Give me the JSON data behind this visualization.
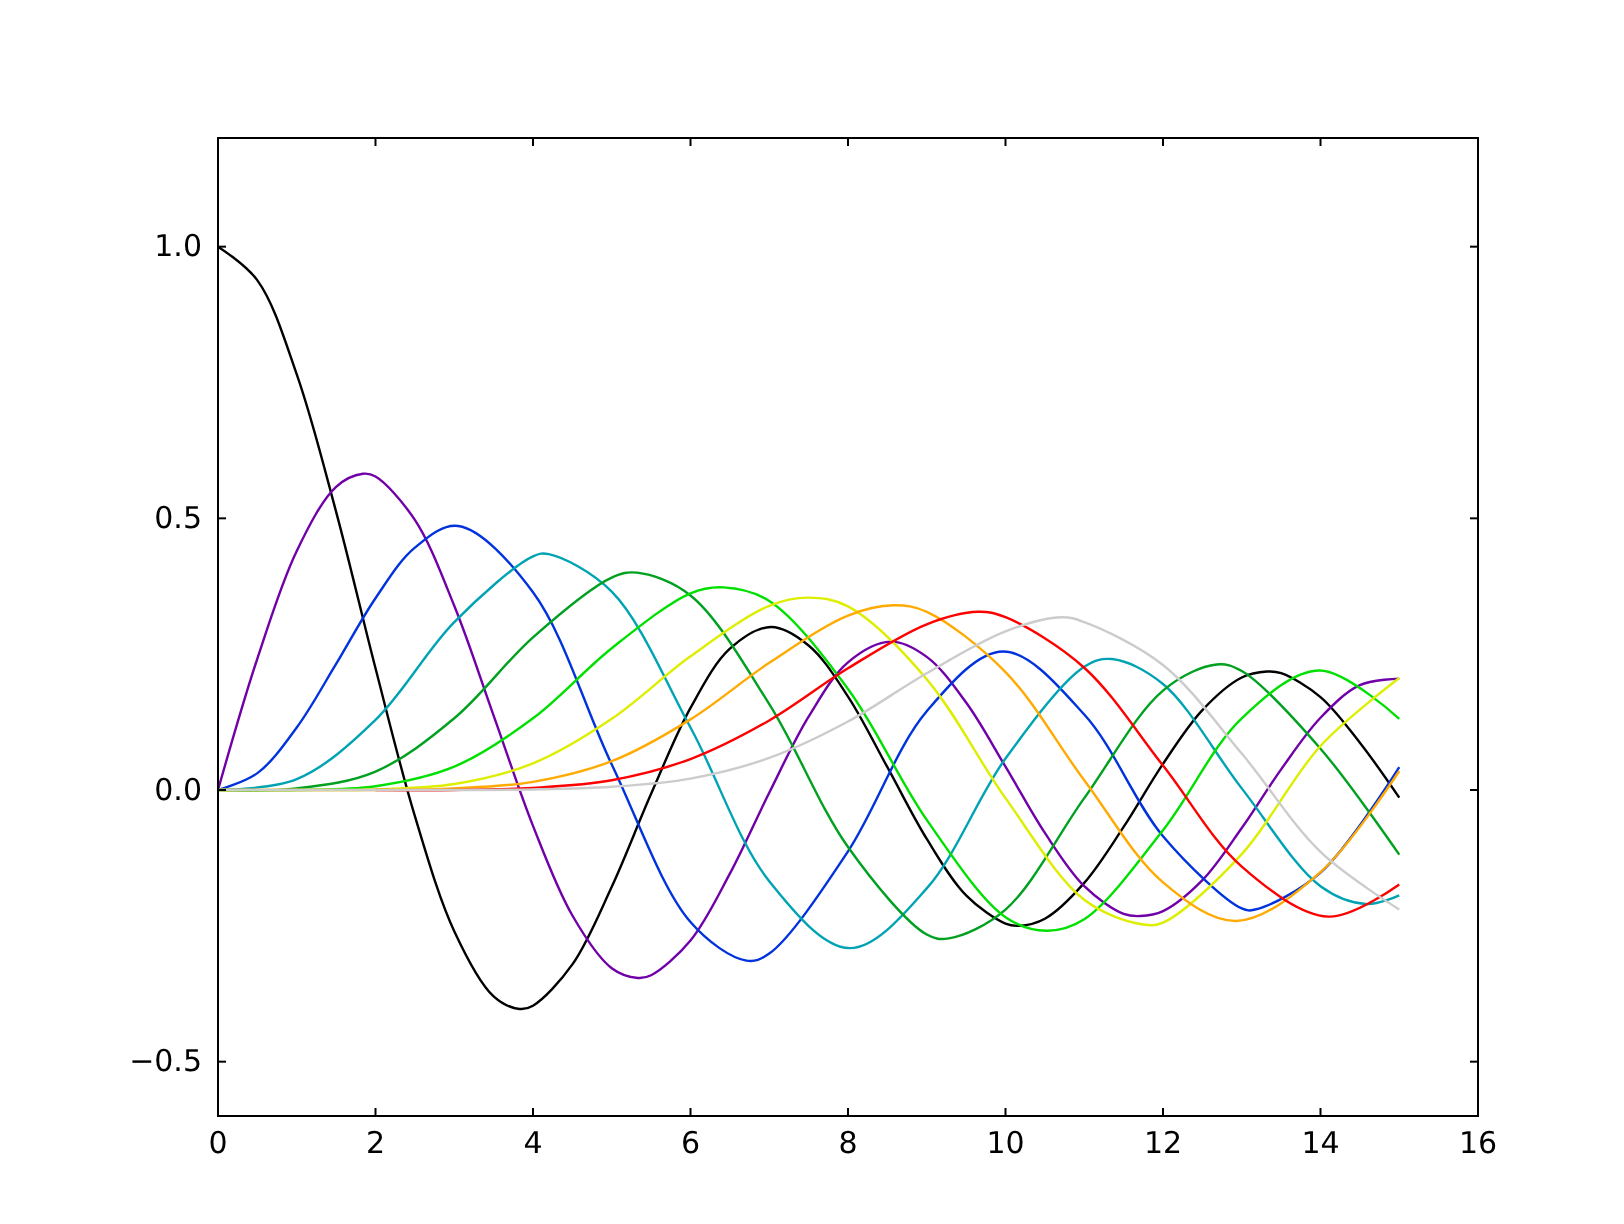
{
  "chart_data": {
    "type": "line",
    "xlim": [
      0,
      16
    ],
    "xticks": [
      0,
      2,
      4,
      6,
      8,
      10,
      12,
      14,
      16
    ],
    "ylim": [
      -0.6,
      1.2
    ],
    "yticks": [
      {
        "value": -0.5,
        "label": "−0.5"
      },
      {
        "value": 0,
        "label": "0.0"
      },
      {
        "value": 0.5,
        "label": "0.5"
      },
      {
        "value": 1,
        "label": "1.0"
      }
    ],
    "grid": false,
    "series": [
      {
        "color": "#000000",
        "x": [
          0,
          0.5,
          1,
          1.5,
          2,
          2.5,
          3,
          3.5,
          3.83,
          4,
          4.5,
          5,
          5.5,
          6,
          6.5,
          7.02,
          7.5,
          8,
          8.5,
          9,
          9.5,
          10,
          10.17,
          10.5,
          11,
          11.5,
          12,
          12.5,
          13,
          13.32,
          13.5,
          14,
          14.5,
          15
        ],
        "values": [
          1,
          0.938,
          0.765,
          0.512,
          0.224,
          -0.048,
          -0.26,
          -0.38,
          -0.403,
          -0.397,
          -0.321,
          -0.178,
          -0.007,
          0.151,
          0.26,
          0.3,
          0.266,
          0.172,
          0.042,
          -0.09,
          -0.194,
          -0.246,
          -0.25,
          -0.237,
          -0.171,
          -0.068,
          0.048,
          0.147,
          0.207,
          0.218,
          0.215,
          0.171,
          0.087,
          -0.014
        ]
      },
      {
        "color": "#7000a8",
        "x": [
          0,
          0.5,
          1,
          1.5,
          1.84,
          2,
          2.5,
          3,
          3.5,
          4,
          4.5,
          5,
          5.33,
          5.5,
          6,
          6.5,
          7,
          7.5,
          8,
          8.54,
          9,
          9.5,
          10,
          10.5,
          11,
          11.5,
          11.71,
          12,
          12.5,
          13,
          13.5,
          14,
          14.5,
          15
        ],
        "values": [
          0,
          0.242,
          0.44,
          0.558,
          0.582,
          0.577,
          0.497,
          0.339,
          0.137,
          -0.066,
          -0.231,
          -0.328,
          -0.346,
          -0.341,
          -0.277,
          -0.154,
          -0.005,
          0.135,
          0.235,
          0.273,
          0.245,
          0.161,
          0.043,
          -0.079,
          -0.177,
          -0.228,
          -0.232,
          -0.223,
          -0.166,
          -0.07,
          0.038,
          0.133,
          0.193,
          0.205
        ]
      },
      {
        "color": "#0033dd",
        "x": [
          0,
          0.5,
          1,
          1.5,
          2,
          2.5,
          3.05,
          4,
          5,
          6,
          6.71,
          7,
          8,
          9,
          9.97,
          11,
          12,
          13,
          13.17,
          14,
          15
        ],
        "values": [
          0,
          0.031,
          0.115,
          0.232,
          0.353,
          0.446,
          0.486,
          0.364,
          0.047,
          -0.243,
          -0.314,
          -0.301,
          -0.113,
          0.145,
          0.255,
          0.139,
          -0.085,
          -0.218,
          -0.22,
          -0.152,
          0.042
        ]
      },
      {
        "color": "#00a3b3",
        "x": [
          0,
          1,
          2,
          3,
          4,
          4.2,
          5,
          6,
          7,
          8.02,
          9,
          10,
          11,
          11.35,
          12,
          13,
          14,
          14.59,
          15
        ],
        "values": [
          0,
          0.02,
          0.129,
          0.309,
          0.43,
          0.434,
          0.365,
          0.115,
          -0.168,
          -0.291,
          -0.181,
          0.058,
          0.227,
          0.241,
          0.195,
          0.003,
          -0.177,
          -0.21,
          -0.194
        ]
      },
      {
        "color": "#00a020",
        "x": [
          0,
          1,
          2,
          3,
          4,
          5,
          5.32,
          6,
          7,
          8,
          9,
          9.28,
          10,
          11,
          12,
          12.68,
          13,
          14,
          15
        ],
        "values": [
          0,
          0.003,
          0.034,
          0.132,
          0.281,
          0.391,
          0.4,
          0.358,
          0.158,
          -0.105,
          -0.266,
          -0.273,
          -0.22,
          -0.015,
          0.183,
          0.231,
          0.219,
          0.076,
          -0.119
        ]
      },
      {
        "color": "#00e000",
        "x": [
          0,
          1,
          2,
          3,
          4,
          5,
          6,
          6.42,
          7,
          8,
          9,
          10,
          10.52,
          11,
          12,
          13,
          13.99,
          15
        ],
        "values": [
          0,
          0,
          0.007,
          0.043,
          0.132,
          0.261,
          0.362,
          0.373,
          0.348,
          0.186,
          -0.055,
          -0.234,
          -0.259,
          -0.238,
          -0.074,
          0.132,
          0.22,
          0.131
        ]
      },
      {
        "color": "#ddee00",
        "x": [
          0,
          1,
          2,
          3,
          4,
          5,
          6,
          7,
          7.5,
          8,
          9,
          10,
          11,
          11.73,
          12,
          13,
          14,
          15
        ],
        "values": [
          0,
          0,
          0.001,
          0.011,
          0.049,
          0.131,
          0.246,
          0.339,
          0.354,
          0.338,
          0.204,
          -0.015,
          -0.202,
          -0.247,
          -0.244,
          -0.118,
          0.081,
          0.206
        ]
      },
      {
        "color": "#ffaa00",
        "x": [
          0,
          1,
          2,
          3,
          4,
          5,
          6,
          7,
          8,
          8.58,
          9,
          10,
          11,
          12,
          12.93,
          14,
          15
        ],
        "values": [
          0,
          0,
          0,
          0.003,
          0.015,
          0.053,
          0.13,
          0.234,
          0.321,
          0.34,
          0.328,
          0.217,
          0.018,
          -0.17,
          -0.241,
          -0.151,
          0.035
        ]
      },
      {
        "color": "#ff0000",
        "x": [
          2,
          3,
          4,
          5,
          6,
          7,
          8,
          9,
          9.65,
          10,
          11,
          12,
          13,
          14.1,
          15
        ],
        "values": [
          0,
          0,
          0.004,
          0.018,
          0.057,
          0.128,
          0.224,
          0.305,
          0.328,
          0.318,
          0.225,
          0.045,
          -0.141,
          -0.233,
          -0.174
        ]
      },
      {
        "color": "#cccccc",
        "x": [
          0,
          1,
          2,
          3,
          4,
          5,
          6,
          7,
          8,
          9,
          10,
          10.71,
          11,
          12,
          13,
          14,
          15
        ],
        "values": [
          0,
          0,
          0,
          0,
          0.001,
          0.006,
          0.021,
          0.059,
          0.126,
          0.215,
          0.292,
          0.318,
          0.309,
          0.23,
          0.067,
          -0.114,
          -0.22
        ]
      }
    ]
  }
}
